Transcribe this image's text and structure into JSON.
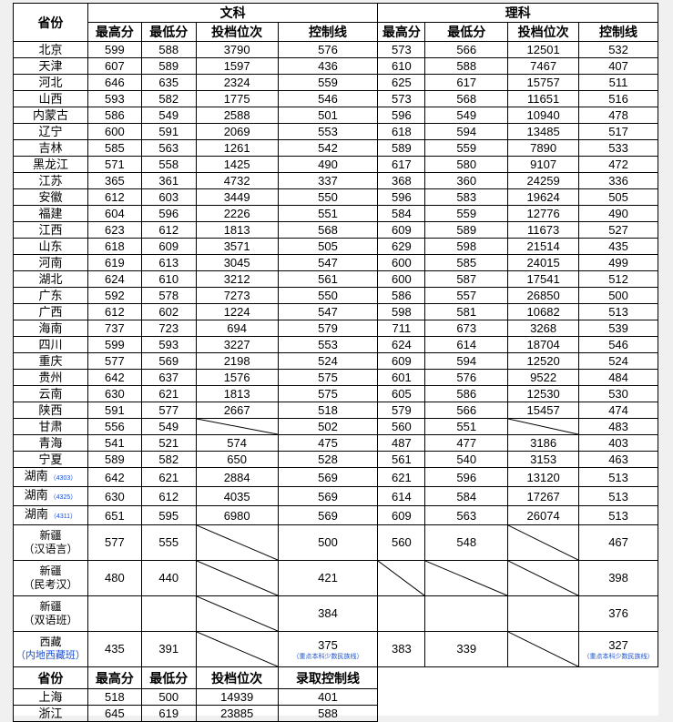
{
  "header": {
    "province": "省份",
    "arts": "文科",
    "science": "理科",
    "cols": [
      "最高分",
      "最低分",
      "投档位次",
      "控制线"
    ]
  },
  "rows": [
    {
      "province": "北京",
      "v": [
        599,
        588,
        3790,
        576,
        573,
        566,
        12501,
        532
      ]
    },
    {
      "province": "天津",
      "v": [
        607,
        589,
        1597,
        436,
        610,
        588,
        7467,
        407
      ]
    },
    {
      "province": "河北",
      "v": [
        646,
        635,
        2324,
        559,
        625,
        617,
        15757,
        511
      ]
    },
    {
      "province": "山西",
      "v": [
        593,
        582,
        1775,
        546,
        573,
        568,
        11651,
        516
      ]
    },
    {
      "province": "内蒙古",
      "v": [
        586,
        549,
        2588,
        501,
        596,
        549,
        10940,
        478
      ]
    },
    {
      "province": "辽宁",
      "v": [
        600,
        591,
        2069,
        553,
        618,
        594,
        13485,
        517
      ]
    },
    {
      "province": "吉林",
      "v": [
        585,
        563,
        1261,
        542,
        589,
        559,
        7890,
        533
      ]
    },
    {
      "province": "黑龙江",
      "v": [
        571,
        558,
        1425,
        490,
        617,
        580,
        9107,
        472
      ]
    },
    {
      "province": "江苏",
      "v": [
        365,
        361,
        4732,
        337,
        368,
        360,
        24259,
        336
      ]
    },
    {
      "province": "安徽",
      "v": [
        612,
        603,
        3449,
        550,
        596,
        583,
        19624,
        505
      ]
    },
    {
      "province": "福建",
      "v": [
        604,
        596,
        2226,
        551,
        584,
        559,
        12776,
        490
      ]
    },
    {
      "province": "江西",
      "v": [
        623,
        612,
        1813,
        568,
        609,
        589,
        11673,
        527
      ]
    },
    {
      "province": "山东",
      "v": [
        618,
        609,
        3571,
        505,
        629,
        598,
        21514,
        435
      ]
    },
    {
      "province": "河南",
      "v": [
        619,
        613,
        3045,
        547,
        600,
        585,
        24015,
        499
      ]
    },
    {
      "province": "湖北",
      "v": [
        624,
        610,
        3212,
        561,
        600,
        587,
        17541,
        512
      ]
    },
    {
      "province": "广东",
      "v": [
        592,
        578,
        7273,
        550,
        586,
        557,
        26850,
        500
      ]
    },
    {
      "province": "广西",
      "v": [
        612,
        602,
        1224,
        547,
        598,
        581,
        10682,
        513
      ]
    },
    {
      "province": "海南",
      "v": [
        737,
        723,
        694,
        579,
        711,
        673,
        3268,
        539
      ]
    },
    {
      "province": "四川",
      "v": [
        599,
        593,
        3227,
        553,
        624,
        614,
        18704,
        546
      ]
    },
    {
      "province": "重庆",
      "v": [
        577,
        569,
        2198,
        524,
        609,
        594,
        12520,
        524
      ]
    },
    {
      "province": "贵州",
      "v": [
        642,
        637,
        1576,
        575,
        601,
        576,
        9522,
        484
      ]
    },
    {
      "province": "云南",
      "v": [
        630,
        621,
        1813,
        575,
        605,
        586,
        12530,
        530
      ]
    },
    {
      "province": "陕西",
      "v": [
        591,
        577,
        2667,
        518,
        579,
        566,
        15457,
        474
      ]
    },
    {
      "province": "甘肃",
      "v": [
        556,
        549,
        null,
        502,
        560,
        551,
        null,
        483
      ],
      "slashed": [
        2,
        6
      ]
    },
    {
      "province": "青海",
      "v": [
        541,
        521,
        574,
        475,
        487,
        477,
        3186,
        403
      ]
    },
    {
      "province": "宁夏",
      "v": [
        589,
        582,
        650,
        528,
        561,
        540,
        3153,
        463
      ]
    },
    {
      "province": "湖南",
      "code": "（4303）",
      "v": [
        642,
        621,
        2884,
        569,
        621,
        596,
        13120,
        513
      ]
    },
    {
      "province": "湖南",
      "code": "（4325）",
      "v": [
        630,
        612,
        4035,
        569,
        614,
        584,
        17267,
        513
      ]
    },
    {
      "province": "湖南",
      "code": "（4311）",
      "v": [
        651,
        595,
        6980,
        569,
        609,
        563,
        26074,
        513
      ]
    }
  ],
  "special_rows": [
    {
      "province": "新疆",
      "sub": "（汉语言）",
      "v": [
        577,
        555,
        null,
        500,
        560,
        548,
        null,
        467
      ],
      "slashed": [
        2,
        6
      ]
    },
    {
      "province": "新疆",
      "sub": "（民考汉）",
      "v": [
        480,
        440,
        null,
        421,
        null,
        null,
        null,
        398
      ],
      "slashed": [
        2,
        4,
        5,
        6
      ]
    },
    {
      "province": "新疆",
      "sub": "（双语班）",
      "v": [
        null,
        null,
        null,
        384,
        null,
        null,
        null,
        376
      ],
      "slashed": [
        2
      ]
    },
    {
      "province": "西藏",
      "sub": "（内地西藏班）",
      "v": [
        435,
        391,
        null,
        375,
        383,
        339,
        null,
        327
      ],
      "slashed": [
        2,
        6
      ],
      "notes": {
        "3": "（重点本科少数民族线）",
        "7": "（重点本科少数民族线）"
      }
    }
  ],
  "bottom": {
    "header": [
      "省份",
      "最高分",
      "最低分",
      "投档位次",
      "录取控制线"
    ],
    "rows": [
      {
        "province": "上海",
        "v": [
          518,
          500,
          14939,
          401
        ]
      },
      {
        "province": "浙江",
        "v": [
          645,
          619,
          23885,
          588
        ]
      }
    ]
  },
  "colors": {
    "note": "#1a4fd0",
    "background": "#f0f0f0"
  }
}
